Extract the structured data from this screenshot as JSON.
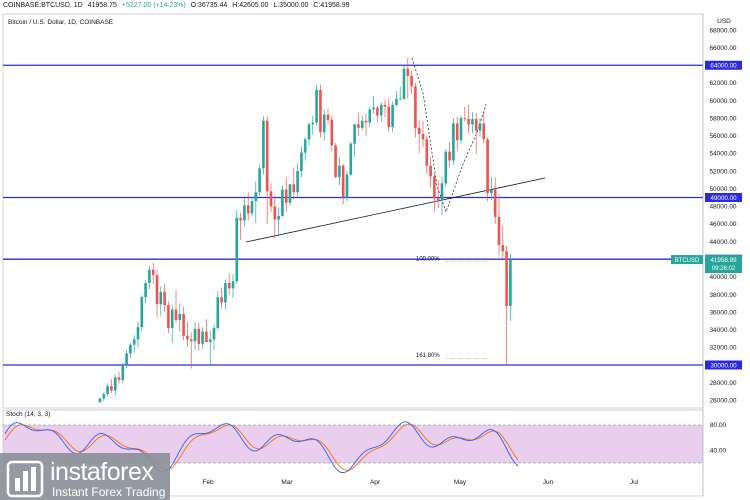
{
  "header": {
    "symbol": "COINBASE:BTCUSD, 1D",
    "open": "41958.75",
    "change": "+5227.00 (+14.23%)",
    "o": "O:36735.44",
    "h": "H:42605.00",
    "l": "L:35000.00",
    "c": "C:41958.99"
  },
  "pane_title": "Bitcoin / U.S. Dollar, 1D, COINBASE",
  "currency": "USD",
  "stoch_label": "Stoch (14, 3, 3)",
  "price_tag": {
    "symbol": "BTCUSD",
    "price": "41958.99",
    "countdown": "09:26:02"
  },
  "fib_labels": [
    "100.00%",
    "161.80%"
  ],
  "logo": {
    "brand": "instaforex",
    "tagline": "Instant Forex Trading"
  },
  "colors": {
    "up": "#26a69a",
    "down": "#ef5350",
    "level_line": "#2a2ae0",
    "stoch_k": "#2962ff",
    "stoch_d": "#ff6d00",
    "stoch_band": "#e1bee7"
  },
  "chart_data": {
    "type": "candlestick",
    "title": "Bitcoin / U.S. Dollar, 1D, COINBASE",
    "ylabel": "USD",
    "ylim": [
      25000,
      68500
    ],
    "yticks": [
      26000,
      28000,
      30000,
      32000,
      34000,
      36000,
      38000,
      40000,
      42000,
      44000,
      46000,
      48000,
      50000,
      52000,
      54000,
      56000,
      58000,
      60000,
      62000,
      64000,
      66000,
      68000
    ],
    "ytick_labels": [
      "26000.00",
      "28000.00",
      "30000.00",
      "32000.00",
      "34000.00",
      "36000.00",
      "38000.00",
      "40000.00",
      "42000.00",
      "44000.00",
      "46000.00",
      "48000.00",
      "50000.00",
      "52000.00",
      "54000.00",
      "56000.00",
      "58000.00",
      "60000.00",
      "62000.00",
      "64000.00",
      "66000.00",
      "68000.00"
    ],
    "xticks": [
      "Feb",
      "Mar",
      "Apr",
      "May",
      "Jun",
      "Jul"
    ],
    "horizontal_levels": [
      {
        "value": 64000,
        "label": "64000.00"
      },
      {
        "value": 49000,
        "label": "49000.00"
      },
      {
        "value": 42000,
        "label": "42000.00"
      },
      {
        "value": 30000,
        "label": "30000.00"
      }
    ],
    "last_price": 41958.99,
    "fibonacci": [
      {
        "label": "100.00%",
        "value": 41958
      },
      {
        "label": "161.80%",
        "value": 31000
      }
    ],
    "candles": [
      [
        1,
        25800,
        26300,
        25700,
        26200
      ],
      [
        2,
        26200,
        26900,
        25900,
        26700
      ],
      [
        3,
        26700,
        27900,
        26500,
        27600
      ],
      [
        4,
        27600,
        28400,
        26800,
        27100
      ],
      [
        5,
        27100,
        28900,
        26500,
        28600
      ],
      [
        6,
        28600,
        29200,
        27900,
        28300
      ],
      [
        7,
        28300,
        30200,
        28000,
        29900
      ],
      [
        8,
        29900,
        31700,
        29600,
        31300
      ],
      [
        9,
        31300,
        32500,
        30800,
        32300
      ],
      [
        10,
        32300,
        33400,
        31400,
        32900
      ],
      [
        11,
        32900,
        34900,
        32000,
        34300
      ],
      [
        12,
        34300,
        37900,
        33800,
        37700
      ],
      [
        13,
        37700,
        39600,
        37000,
        39300
      ],
      [
        14,
        39300,
        41200,
        38600,
        40800
      ],
      [
        15,
        40800,
        41600,
        39200,
        40200
      ],
      [
        16,
        40200,
        40800,
        35400,
        36900
      ],
      [
        17,
        36900,
        38900,
        35600,
        38300
      ],
      [
        18,
        38300,
        39200,
        36000,
        36800
      ],
      [
        19,
        36800,
        37200,
        33600,
        34200
      ],
      [
        20,
        34200,
        36800,
        32500,
        36300
      ],
      [
        21,
        36300,
        38500,
        34800,
        35100
      ],
      [
        22,
        35100,
        37000,
        33800,
        35800
      ],
      [
        23,
        35800,
        36600,
        32800,
        33300
      ],
      [
        24,
        33300,
        34900,
        32100,
        32900
      ],
      [
        25,
        32900,
        33700,
        29600,
        32700
      ],
      [
        26,
        32700,
        34900,
        31700,
        34100
      ],
      [
        27,
        34100,
        34800,
        31600,
        32400
      ],
      [
        28,
        32400,
        34300,
        31800,
        33800
      ],
      [
        29,
        33800,
        35200,
        32600,
        32600
      ],
      [
        30,
        32600,
        33900,
        29900,
        32900
      ],
      [
        31,
        32900,
        34600,
        31700,
        34200
      ],
      [
        32,
        34200,
        38400,
        34000,
        37700
      ],
      [
        33,
        37700,
        38800,
        36400,
        37100
      ],
      [
        34,
        37100,
        39700,
        36300,
        39300
      ],
      [
        35,
        39300,
        40400,
        38000,
        38700
      ],
      [
        36,
        38700,
        40300,
        37600,
        39500
      ],
      [
        37,
        39500,
        47600,
        39200,
        46700
      ],
      [
        38,
        46700,
        47300,
        44200,
        46400
      ],
      [
        39,
        46400,
        48900,
        45700,
        48100
      ],
      [
        40,
        48100,
        49600,
        46400,
        47200
      ],
      [
        41,
        47200,
        49100,
        46900,
        48600
      ],
      [
        42,
        48600,
        50800,
        46100,
        49600
      ],
      [
        43,
        49600,
        52800,
        49200,
        52300
      ],
      [
        44,
        52300,
        58200,
        51600,
        57700
      ],
      [
        45,
        57700,
        58200,
        46000,
        49700
      ],
      [
        46,
        49700,
        50600,
        47400,
        48000
      ],
      [
        47,
        48000,
        49200,
        44400,
        46500
      ],
      [
        48,
        46500,
        47900,
        44600,
        46900
      ],
      [
        49,
        46900,
        50400,
        46800,
        49900
      ],
      [
        50,
        49900,
        51300,
        47400,
        48400
      ],
      [
        51,
        48400,
        50500,
        48100,
        50500
      ],
      [
        52,
        50500,
        52400,
        48800,
        49600
      ],
      [
        53,
        49600,
        52900,
        49100,
        52000
      ],
      [
        54,
        52000,
        54800,
        51300,
        54100
      ],
      [
        55,
        54100,
        55900,
        53200,
        55600
      ],
      [
        56,
        55600,
        57500,
        54900,
        57300
      ],
      [
        57,
        57300,
        58300,
        56100,
        57500
      ],
      [
        58,
        57500,
        61800,
        57200,
        61200
      ],
      [
        59,
        61200,
        61800,
        55800,
        56400
      ],
      [
        60,
        56400,
        58900,
        55500,
        58400
      ],
      [
        61,
        58400,
        59100,
        57300,
        57800
      ],
      [
        62,
        57800,
        58300,
        54200,
        54900
      ],
      [
        63,
        54900,
        55200,
        51200,
        51300
      ],
      [
        64,
        51300,
        53600,
        50400,
        52600
      ],
      [
        65,
        52600,
        52800,
        48200,
        49000
      ],
      [
        66,
        49000,
        52000,
        48600,
        51600
      ],
      [
        67,
        51600,
        55300,
        51400,
        55100
      ],
      [
        68,
        55100,
        57300,
        53600,
        57300
      ],
      [
        69,
        57300,
        58600,
        56000,
        56900
      ],
      [
        70,
        56900,
        58300,
        56600,
        57700
      ],
      [
        71,
        57700,
        58500,
        56000,
        57500
      ],
      [
        72,
        57500,
        59300,
        57000,
        59000
      ],
      [
        73,
        59000,
        60500,
        58500,
        59200
      ],
      [
        74,
        59200,
        59400,
        57500,
        58300
      ],
      [
        75,
        58300,
        59800,
        57600,
        59500
      ],
      [
        76,
        59500,
        60100,
        58100,
        59300
      ],
      [
        77,
        59300,
        60300,
        56500,
        57000
      ],
      [
        78,
        57000,
        59900,
        56400,
        59500
      ],
      [
        79,
        59500,
        61100,
        59300,
        60200
      ],
      [
        80,
        60200,
        61600,
        60000,
        60200
      ],
      [
        81,
        60200,
        63900,
        60000,
        63600
      ],
      [
        82,
        63600,
        64800,
        60200,
        62800
      ],
      [
        83,
        62800,
        63400,
        60800,
        61600
      ],
      [
        84,
        61600,
        62000,
        55800,
        56900
      ],
      [
        85,
        56900,
        57700,
        54000,
        56200
      ],
      [
        86,
        56200,
        57700,
        54700,
        55600
      ],
      [
        87,
        55600,
        56000,
        51700,
        52600
      ],
      [
        88,
        52600,
        53600,
        50100,
        51400
      ],
      [
        89,
        51400,
        51700,
        47400,
        48900
      ],
      [
        90,
        48900,
        51000,
        47800,
        48700
      ],
      [
        91,
        48700,
        51300,
        47000,
        50600
      ],
      [
        92,
        50600,
        54500,
        50200,
        54200
      ],
      [
        93,
        54200,
        55300,
        52400,
        53200
      ],
      [
        94,
        53200,
        58000,
        52700,
        57400
      ],
      [
        95,
        57400,
        58200,
        54300,
        55500
      ],
      [
        96,
        55500,
        58300,
        55100,
        58000
      ],
      [
        97,
        58000,
        59300,
        57600,
        57900
      ],
      [
        98,
        57900,
        59500,
        56300,
        57300
      ],
      [
        99,
        57300,
        58700,
        56300,
        57900
      ],
      [
        100,
        57900,
        58600,
        53900,
        56600
      ],
      [
        101,
        56600,
        58000,
        55900,
        57400
      ],
      [
        102,
        57400,
        58800,
        55200,
        55600
      ],
      [
        103,
        55600,
        55800,
        48600,
        49500
      ],
      [
        104,
        49500,
        51300,
        48700,
        49900
      ],
      [
        105,
        49900,
        51300,
        46000,
        46800
      ],
      [
        106,
        46800,
        49400,
        42300,
        43600
      ],
      [
        107,
        43600,
        45800,
        42100,
        42900
      ],
      [
        108,
        42900,
        43500,
        30000,
        36700
      ],
      [
        109,
        36700,
        42600,
        35000,
        41959
      ]
    ],
    "stochastic": {
      "name": "Stoch (14, 3, 3)",
      "levels": [
        80,
        20
      ],
      "ytick_labels": [
        "80.00",
        "40.00"
      ]
    }
  }
}
